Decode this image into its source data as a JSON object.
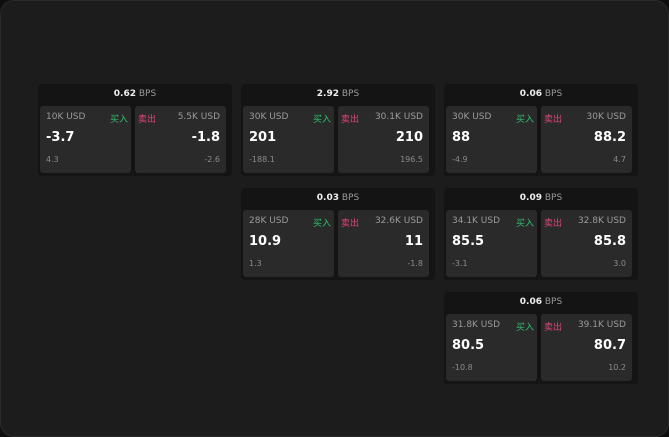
{
  "unit": "BPS",
  "buy_label": "买入",
  "sell_label": "卖出",
  "colors": {
    "buy": "#2fbf6a",
    "sell": "#e0457a"
  },
  "cards": [
    {
      "spread": "0.62",
      "bid_size": "10K USD",
      "bid": "-3.7",
      "bid_change": "4.3",
      "ask_size": "5.5K USD",
      "ask": "-1.8",
      "ask_change": "-2.6"
    },
    {
      "spread": "2.92",
      "bid_size": "30K USD",
      "bid": "201",
      "bid_change": "-188.1",
      "ask_size": "30.1K USD",
      "ask": "210",
      "ask_change": "196.5"
    },
    {
      "spread": "0.06",
      "bid_size": "30K USD",
      "bid": "88",
      "bid_change": "-4.9",
      "ask_size": "30K USD",
      "ask": "88.2",
      "ask_change": "4.7"
    },
    {
      "spread": "0.03",
      "bid_size": "28K USD",
      "bid": "10.9",
      "bid_change": "1.3",
      "ask_size": "32.6K USD",
      "ask": "11",
      "ask_change": "-1.8"
    },
    {
      "spread": "0.09",
      "bid_size": "34.1K USD",
      "bid": "85.5",
      "bid_change": "-3.1",
      "ask_size": "32.8K USD",
      "ask": "85.8",
      "ask_change": "3.0"
    },
    {
      "spread": "0.06",
      "bid_size": "31.8K USD",
      "bid": "80.5",
      "bid_change": "-10.8",
      "ask_size": "39.1K USD",
      "ask": "80.7",
      "ask_change": "10.2"
    }
  ]
}
